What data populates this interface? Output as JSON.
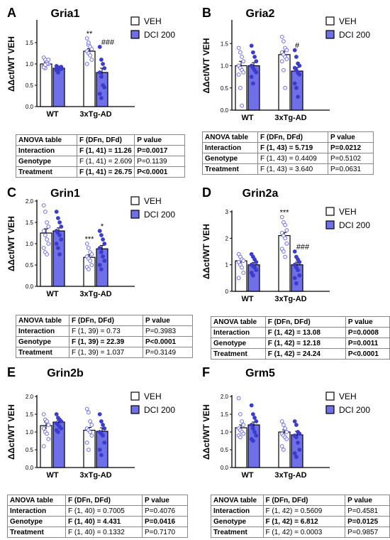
{
  "legend": {
    "veh": "VEH",
    "dci": "DCI 200"
  },
  "colors": {
    "veh_fill": "#ffffff",
    "dci_fill": "#6f6fe8",
    "veh_point": "#6f6fe8",
    "dci_point": "#3b3bcc",
    "axis": "#000000"
  },
  "chart_data": [
    {
      "panel": "A",
      "title": "Gria1",
      "type": "bar",
      "ylabel": "ΔΔct/WT VEH",
      "categories": [
        "WT",
        "3xTg-AD"
      ],
      "ylim": [
        0,
        2.0
      ],
      "yticks": [
        "0.0",
        "0.5",
        "1.0",
        "1.5"
      ],
      "series": [
        {
          "name": "VEH",
          "values": [
            1.0,
            1.3
          ],
          "sem": [
            0.04,
            0.06
          ],
          "points": [
            [
              1.15,
              1.1,
              1.05,
              1.0,
              0.95,
              0.9,
              1.0,
              1.1,
              0.92,
              0.98
            ],
            [
              1.6,
              1.45,
              1.4,
              1.35,
              1.3,
              1.25,
              1.2,
              1.1,
              1.0,
              1.5
            ]
          ]
        },
        {
          "name": "DCI 200",
          "values": [
            0.9,
            0.8
          ],
          "sem": [
            0.03,
            0.1
          ],
          "points": [
            [
              0.95,
              0.92,
              0.9,
              0.88,
              0.85,
              0.82,
              0.9,
              0.93,
              0.87,
              0.8
            ],
            [
              1.4,
              1.1,
              1.0,
              0.9,
              0.8,
              0.7,
              0.5,
              0.45,
              0.3,
              0.2
            ]
          ]
        }
      ],
      "annotations": [
        {
          "text": "**",
          "cat": 1,
          "series": 0
        },
        {
          "text": "###",
          "cat": 1,
          "series": 1
        }
      ],
      "table": {
        "header": [
          "ANOVA table",
          "F (DFn, DFd)",
          "P value"
        ],
        "rows": [
          [
            "Interaction",
            "F (1, 41) = 11.26",
            "P=0.0017"
          ],
          [
            "Genotype",
            "F (1, 41) = 2.609",
            "P=0.1139"
          ],
          [
            "Treatment",
            "F (1, 41) = 26.75",
            "P<0.0001"
          ]
        ],
        "bold": [
          true,
          false,
          true
        ]
      }
    },
    {
      "panel": "B",
      "title": "Gria2",
      "type": "bar",
      "ylabel": "ΔΔct/WT VEH",
      "categories": [
        "WT",
        "3xTg-AD"
      ],
      "ylim": [
        0,
        2.0
      ],
      "yticks": [
        "0.0",
        "0.5",
        "1.0",
        "1.5"
      ],
      "series": [
        {
          "name": "VEH",
          "values": [
            1.0,
            1.25
          ],
          "sem": [
            0.1,
            0.08
          ],
          "points": [
            [
              1.4,
              1.3,
              1.2,
              1.1,
              1.0,
              0.95,
              0.9,
              0.85,
              0.8,
              0.5,
              0.1
            ],
            [
              1.65,
              1.55,
              1.4,
              1.35,
              1.3,
              1.25,
              1.2,
              1.15,
              1.1,
              0.9,
              0.5
            ]
          ]
        },
        {
          "name": "DCI 200",
          "values": [
            1.0,
            0.88
          ],
          "sem": [
            0.07,
            0.08
          ],
          "points": [
            [
              1.45,
              1.3,
              1.2,
              1.1,
              1.0,
              0.95,
              0.9,
              0.85,
              0.75,
              0.6
            ],
            [
              1.35,
              1.2,
              1.05,
              1.0,
              0.95,
              0.9,
              0.85,
              0.8,
              0.6,
              0.5,
              0.3
            ]
          ]
        }
      ],
      "annotations": [
        {
          "text": "#",
          "cat": 1,
          "series": 1
        }
      ],
      "table": {
        "header": [
          "ANOVA table",
          "F (DFn, DFd)",
          "P value"
        ],
        "rows": [
          [
            "Interaction",
            "F (1, 43) = 5.719",
            "P=0.0212"
          ],
          [
            "Genotype",
            "F (1, 43) = 0.4409",
            "P=0.5102"
          ],
          [
            "Treatment",
            "F (1, 43) = 3.640",
            "P=0.0631"
          ]
        ],
        "bold": [
          true,
          false,
          false
        ]
      }
    },
    {
      "panel": "C",
      "title": "Grin1",
      "type": "bar",
      "ylabel": "ΔΔct/WT VEH",
      "categories": [
        "WT",
        "3xTg-AD"
      ],
      "ylim": [
        0,
        2.0
      ],
      "yticks": [
        "0.0",
        "0.5",
        "1.0",
        "1.5",
        "2.0"
      ],
      "series": [
        {
          "name": "VEH",
          "values": [
            1.25,
            0.68
          ],
          "sem": [
            0.1,
            0.06
          ],
          "points": [
            [
              1.9,
              1.75,
              1.5,
              1.4,
              1.3,
              1.2,
              1.1,
              1.0,
              0.9,
              0.8,
              0.75
            ],
            [
              1.0,
              0.9,
              0.8,
              0.75,
              0.7,
              0.65,
              0.6,
              0.5,
              0.45,
              0.4
            ]
          ]
        },
        {
          "name": "DCI 200",
          "values": [
            1.3,
            0.88
          ],
          "sem": [
            0.07,
            0.08
          ],
          "points": [
            [
              1.75,
              1.6,
              1.5,
              1.4,
              1.3,
              1.25,
              1.2,
              1.1,
              1.0,
              0.9,
              0.75
            ],
            [
              1.3,
              1.2,
              1.1,
              1.0,
              0.9,
              0.8,
              0.7,
              0.6,
              0.5,
              0.4
            ]
          ]
        }
      ],
      "annotations": [
        {
          "text": "***",
          "cat": 1,
          "series": 0
        },
        {
          "text": "*",
          "cat": 1,
          "series": 1
        }
      ],
      "table": {
        "header": [
          "ANOVA table",
          "F (DFn, DFd)",
          "P value"
        ],
        "rows": [
          [
            "Interaction",
            "F (1, 39) = 0.73",
            "P=0.3983"
          ],
          [
            "Genotype",
            "F (1, 39) = 22.39",
            "P<0.0001"
          ],
          [
            "Treatment",
            "F (1, 39) = 1.037",
            "P=0.3149"
          ]
        ],
        "bold": [
          false,
          true,
          false
        ]
      }
    },
    {
      "panel": "D",
      "title": "Grin2a",
      "type": "bar",
      "ylabel": "ΔΔct/WT VEH",
      "categories": [
        "WT",
        "3xTg-AD"
      ],
      "ylim": [
        0,
        3.0
      ],
      "yticks": [
        "0",
        "1",
        "2",
        "3"
      ],
      "series": [
        {
          "name": "VEH",
          "values": [
            1.15,
            2.1
          ],
          "sem": [
            0.1,
            0.12
          ],
          "points": [
            [
              1.4,
              1.3,
              1.2,
              1.15,
              1.1,
              1.0,
              0.9,
              0.7,
              0.5
            ],
            [
              2.8,
              2.6,
              2.5,
              2.3,
              2.2,
              2.1,
              2.0,
              1.8,
              1.6,
              1.5,
              1.3
            ]
          ]
        },
        {
          "name": "DCI 200",
          "values": [
            1.0,
            1.0
          ],
          "sem": [
            0.08,
            0.1
          ],
          "points": [
            [
              1.4,
              1.3,
              1.2,
              1.1,
              1.0,
              0.95,
              0.9,
              0.8,
              0.7,
              0.6
            ],
            [
              1.5,
              1.3,
              1.2,
              1.1,
              1.0,
              0.9,
              0.8,
              0.6,
              0.5,
              0.3
            ]
          ]
        }
      ],
      "annotations": [
        {
          "text": "***",
          "cat": 1,
          "series": 0
        },
        {
          "text": "###",
          "cat": 1,
          "series": 1
        }
      ],
      "table": {
        "header": [
          "ANOVA table",
          "F (DFn, DFd)",
          "P value"
        ],
        "rows": [
          [
            "Interaction",
            "F (1, 42) = 13.08",
            "P=0.0008"
          ],
          [
            "Genotype",
            "F (1, 42) = 12.18",
            "P=0.0011"
          ],
          [
            "Treatment",
            "F (1, 42) = 24.24",
            "P<0.0001"
          ]
        ],
        "bold": [
          true,
          true,
          true
        ]
      }
    },
    {
      "panel": "E",
      "title": "Grin2b",
      "type": "bar",
      "ylabel": "ΔΔct/WT VEH",
      "categories": [
        "WT",
        "3xTg-AD"
      ],
      "ylim": [
        0,
        2.0
      ],
      "yticks": [
        "0.0",
        "0.5",
        "1.0",
        "1.5",
        "2.0"
      ],
      "series": [
        {
          "name": "VEH",
          "values": [
            1.18,
            1.05
          ],
          "sem": [
            0.1,
            0.08
          ],
          "points": [
            [
              1.5,
              1.35,
              1.3,
              1.2,
              1.1,
              1.0,
              0.95,
              0.8,
              0.6
            ],
            [
              1.65,
              1.55,
              1.3,
              1.2,
              1.1,
              1.05,
              1.0,
              0.9,
              0.7,
              0.5
            ]
          ]
        },
        {
          "name": "DCI 200",
          "values": [
            1.28,
            1.02
          ],
          "sem": [
            0.05,
            0.1
          ],
          "points": [
            [
              1.5,
              1.4,
              1.35,
              1.3,
              1.25,
              1.2,
              1.15,
              1.1,
              1.05,
              1.0
            ],
            [
              1.5,
              1.3,
              1.2,
              1.1,
              1.0,
              0.95,
              0.9,
              0.7,
              0.5,
              0.35
            ]
          ]
        }
      ],
      "annotations": [],
      "table": {
        "header": [
          "ANOVA table",
          "F (DFn, DFd)",
          "P value"
        ],
        "rows": [
          [
            "Interaction",
            "F (1, 40) = 0.7005",
            "P=0.4076"
          ],
          [
            "Genotype",
            "F (1, 40) = 4.431",
            "P=0.0416"
          ],
          [
            "Treatment",
            "F (1, 40) = 0.1332",
            "P=0.7170"
          ]
        ],
        "bold": [
          false,
          true,
          false
        ]
      }
    },
    {
      "panel": "F",
      "title": "Grm5",
      "type": "bar",
      "ylabel": "ΔΔct/WT VEH",
      "categories": [
        "WT",
        "3xTg-AD"
      ],
      "ylim": [
        0,
        2.0
      ],
      "yticks": [
        "0.0",
        "0.5",
        "1.0",
        "1.5",
        "2.0"
      ],
      "series": [
        {
          "name": "VEH",
          "values": [
            1.12,
            1.0
          ],
          "sem": [
            0.08,
            0.06
          ],
          "points": [
            [
              1.95,
              1.5,
              1.3,
              1.2,
              1.1,
              1.05,
              1.0,
              0.95,
              0.9,
              0.85
            ],
            [
              1.3,
              1.2,
              1.1,
              1.0,
              0.95,
              0.9,
              0.85,
              0.8,
              0.6,
              0.5
            ]
          ]
        },
        {
          "name": "DCI 200",
          "values": [
            1.2,
            0.92
          ],
          "sem": [
            0.08,
            0.1
          ],
          "points": [
            [
              1.75,
              1.5,
              1.4,
              1.3,
              1.2,
              1.1,
              1.0,
              0.9,
              0.8,
              0.75
            ],
            [
              1.3,
              1.2,
              1.0,
              0.95,
              0.9,
              0.85,
              0.7,
              0.5,
              0.4,
              0.3
            ]
          ]
        }
      ],
      "annotations": [],
      "table": {
        "header": [
          "ANOVA table",
          "F (DFn, DFd)",
          "P value"
        ],
        "rows": [
          [
            "Interaction",
            "F (1, 42) = 0.5609",
            "P=0.4581"
          ],
          [
            "Genotype",
            "F (1, 42) = 6.812",
            "P=0.0125"
          ],
          [
            "Treatment",
            "F (1, 42) = 0.0003",
            "P=0.9857"
          ]
        ],
        "bold": [
          false,
          true,
          false
        ]
      }
    }
  ]
}
